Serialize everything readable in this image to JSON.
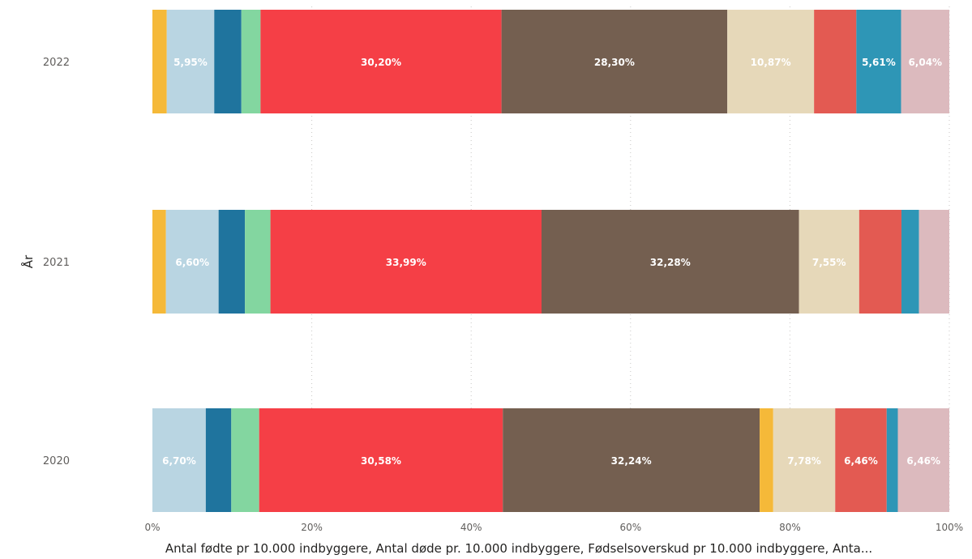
{
  "chart_data": {
    "type": "bar",
    "orientation": "horizontal",
    "stacking": "100%",
    "ylabel": "År",
    "xlabel": "Antal fødte pr 10.000 indbyggere, Antal døde pr. 10.000 indbyggere, Fødselsoverskud pr 10.000 indbyggere, Anta...",
    "xlim": [
      0,
      100
    ],
    "xticks": [
      "0%",
      "20%",
      "40%",
      "60%",
      "80%",
      "100%"
    ],
    "grid": true,
    "legend": "none",
    "categories": [
      "2022",
      "2021",
      "2020"
    ],
    "rows": [
      {
        "year": "2022",
        "segments": [
          {
            "value": 1.8,
            "color": "#f5b939",
            "label": ""
          },
          {
            "value": 5.95,
            "color": "#b9d5e2",
            "label": "5,95%"
          },
          {
            "value": 3.4,
            "color": "#1f749e",
            "label": ""
          },
          {
            "value": 2.4,
            "color": "#83d6a0",
            "label": ""
          },
          {
            "value": 30.2,
            "color": "#f53f46",
            "label": "30,20%"
          },
          {
            "value": 28.3,
            "color": "#745f50",
            "label": "28,30%"
          },
          {
            "value": 10.87,
            "color": "#e6d8b9",
            "label": "10,87%"
          },
          {
            "value": 5.3,
            "color": "#e35a52",
            "label": ""
          },
          {
            "value": 5.61,
            "color": "#2e96b6",
            "label": "5,61%"
          },
          {
            "value": 6.04,
            "color": "#dcbabe",
            "label": "6,04%"
          }
        ]
      },
      {
        "year": "2021",
        "segments": [
          {
            "value": 1.7,
            "color": "#f5b939",
            "label": ""
          },
          {
            "value": 6.6,
            "color": "#b9d5e2",
            "label": "6,60%"
          },
          {
            "value": 3.3,
            "color": "#1f749e",
            "label": ""
          },
          {
            "value": 3.2,
            "color": "#83d6a0",
            "label": ""
          },
          {
            "value": 33.99,
            "color": "#f53f46",
            "label": "33,99%"
          },
          {
            "value": 32.28,
            "color": "#745f50",
            "label": "32,28%"
          },
          {
            "value": 7.55,
            "color": "#e6d8b9",
            "label": "7,55%"
          },
          {
            "value": 5.3,
            "color": "#e35a52",
            "label": ""
          },
          {
            "value": 2.2,
            "color": "#2e96b6",
            "label": ""
          },
          {
            "value": 3.8,
            "color": "#dcbabe",
            "label": ""
          }
        ]
      },
      {
        "year": "2020",
        "segments": [
          {
            "value": 6.7,
            "color": "#b9d5e2",
            "label": "6,70%"
          },
          {
            "value": 3.2,
            "color": "#1f749e",
            "label": ""
          },
          {
            "value": 3.5,
            "color": "#83d6a0",
            "label": ""
          },
          {
            "value": 30.58,
            "color": "#f53f46",
            "label": "30,58%"
          },
          {
            "value": 32.24,
            "color": "#745f50",
            "label": "32,24%"
          },
          {
            "value": 1.7,
            "color": "#f5b939",
            "label": ""
          },
          {
            "value": 7.78,
            "color": "#e6d8b9",
            "label": "7,78%"
          },
          {
            "value": 6.46,
            "color": "#e35a52",
            "label": "6,46%"
          },
          {
            "value": 1.4,
            "color": "#2e96b6",
            "label": ""
          },
          {
            "value": 6.46,
            "color": "#dcbabe",
            "label": "6,46%"
          }
        ]
      }
    ]
  }
}
